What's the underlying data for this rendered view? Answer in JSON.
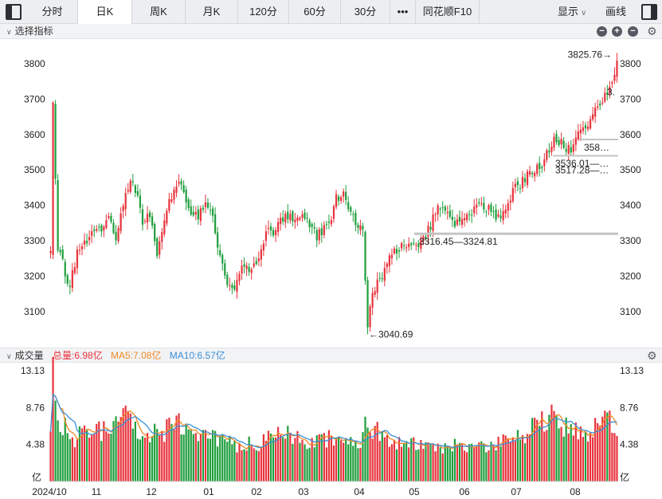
{
  "toolbar": {
    "tabs": [
      {
        "label": "分时"
      },
      {
        "label": "日K"
      },
      {
        "label": "周K"
      },
      {
        "label": "月K"
      },
      {
        "label": "120分"
      },
      {
        "label": "60分"
      },
      {
        "label": "30分"
      },
      {
        "label": "•••"
      },
      {
        "label": "同花顺F10"
      }
    ],
    "active_tab": "日K",
    "display_label": "显示",
    "draw_label": "画线"
  },
  "indicator_panel": {
    "label": "选择指标",
    "buttons": [
      "−",
      "+",
      "−"
    ]
  },
  "volume_panel": {
    "label": "成交量",
    "legend": {
      "total": "总量:6.98亿",
      "ma5": "MA5:7.08亿",
      "ma10": "MA10:6.57亿"
    }
  },
  "colors": {
    "up": "#e8333c",
    "down": "#1e9e3c",
    "ma5": "#f08a24",
    "ma10": "#3a8fd9",
    "ref_line": "#c4c4c4"
  },
  "chart_data": [
    {
      "type": "candlestick",
      "title": "",
      "x_labels": [
        "2024/10",
        "11",
        "12",
        "01",
        "02",
        "03",
        "04",
        "05",
        "06",
        "07",
        "08"
      ],
      "y_ticks": [
        3100,
        3200,
        3300,
        3400,
        3500,
        3600,
        3700,
        3800
      ],
      "ylim": [
        3000,
        3860
      ],
      "grid": false,
      "annotations": {
        "high": "3825.76→",
        "low": "←3040.69",
        "range_1": "3316.45—3324.81",
        "range_2": "358…",
        "range_3": "3536.01—…",
        "range_4": "3517.28—…",
        "range_5": "3."
      },
      "close_path": [
        [
          0,
          3260
        ],
        [
          1,
          3690
        ],
        [
          3,
          3280
        ],
        [
          8,
          3170
        ],
        [
          11,
          3270
        ],
        [
          15,
          3300
        ],
        [
          20,
          3330
        ],
        [
          24,
          3370
        ],
        [
          27,
          3300
        ],
        [
          30,
          3400
        ],
        [
          33,
          3480
        ],
        [
          35,
          3450
        ],
        [
          38,
          3350
        ],
        [
          41,
          3380
        ],
        [
          44,
          3270
        ],
        [
          47,
          3370
        ],
        [
          50,
          3420
        ],
        [
          53,
          3480
        ],
        [
          55,
          3430
        ],
        [
          58,
          3380
        ],
        [
          61,
          3370
        ],
        [
          64,
          3400
        ],
        [
          67,
          3360
        ],
        [
          70,
          3250
        ],
        [
          73,
          3190
        ],
        [
          76,
          3160
        ],
        [
          79,
          3230
        ],
        [
          83,
          3220
        ],
        [
          86,
          3260
        ],
        [
          89,
          3330
        ],
        [
          92,
          3320
        ],
        [
          95,
          3350
        ],
        [
          98,
          3370
        ],
        [
          101,
          3360
        ],
        [
          104,
          3370
        ],
        [
          107,
          3340
        ],
        [
          110,
          3310
        ],
        [
          113,
          3340
        ],
        [
          116,
          3370
        ],
        [
          118,
          3420
        ],
        [
          121,
          3440
        ],
        [
          124,
          3380
        ],
        [
          127,
          3340
        ],
        [
          129,
          3320
        ],
        [
          131,
          3060
        ],
        [
          133,
          3150
        ],
        [
          136,
          3190
        ],
        [
          140,
          3250
        ],
        [
          143,
          3270
        ],
        [
          146,
          3290
        ],
        [
          149,
          3300
        ],
        [
          152,
          3290
        ],
        [
          155,
          3320
        ],
        [
          158,
          3360
        ],
        [
          161,
          3400
        ],
        [
          164,
          3370
        ],
        [
          167,
          3350
        ],
        [
          170,
          3360
        ],
        [
          173,
          3380
        ],
        [
          176,
          3390
        ],
        [
          179,
          3400
        ],
        [
          182,
          3380
        ],
        [
          185,
          3360
        ],
        [
          188,
          3380
        ],
        [
          191,
          3440
        ],
        [
          194,
          3460
        ],
        [
          197,
          3490
        ],
        [
          200,
          3500
        ],
        [
          203,
          3520
        ],
        [
          206,
          3560
        ],
        [
          209,
          3590
        ],
        [
          212,
          3570
        ],
        [
          215,
          3550
        ],
        [
          218,
          3600
        ],
        [
          221,
          3620
        ],
        [
          224,
          3660
        ],
        [
          227,
          3690
        ],
        [
          230,
          3720
        ],
        [
          232,
          3760
        ],
        [
          234,
          3800
        ]
      ]
    },
    {
      "type": "bar",
      "title": "",
      "unit": "亿",
      "y_ticks": [
        4.38,
        8.76,
        13.13
      ],
      "ylim": [
        0,
        13.13
      ],
      "volume_path": [
        [
          0,
          6.6
        ],
        [
          1,
          12.8
        ],
        [
          2,
          9.4
        ],
        [
          4,
          7.3
        ],
        [
          7,
          5.8
        ],
        [
          10,
          5.2
        ],
        [
          14,
          5.9
        ],
        [
          18,
          6.4
        ],
        [
          22,
          6.2
        ],
        [
          26,
          6.7
        ],
        [
          28,
          8.4
        ],
        [
          30,
          9.1
        ],
        [
          32,
          8.2
        ],
        [
          36,
          6.4
        ],
        [
          40,
          5.8
        ],
        [
          44,
          6.0
        ],
        [
          48,
          6.2
        ],
        [
          50,
          6.9
        ],
        [
          53,
          7.1
        ],
        [
          56,
          6.3
        ],
        [
          60,
          5.6
        ],
        [
          64,
          5.4
        ],
        [
          68,
          5.0
        ],
        [
          72,
          4.7
        ],
        [
          76,
          4.6
        ],
        [
          80,
          4.4
        ],
        [
          84,
          4.5
        ],
        [
          88,
          4.8
        ],
        [
          92,
          5.3
        ],
        [
          96,
          5.6
        ],
        [
          100,
          5.5
        ],
        [
          104,
          5.1
        ],
        [
          108,
          4.8
        ],
        [
          112,
          5.0
        ],
        [
          116,
          5.2
        ],
        [
          120,
          5.0
        ],
        [
          124,
          4.8
        ],
        [
          128,
          4.5
        ],
        [
          131,
          7.8
        ],
        [
          134,
          6.2
        ],
        [
          138,
          5.6
        ],
        [
          142,
          5.0
        ],
        [
          146,
          4.6
        ],
        [
          150,
          4.4
        ],
        [
          154,
          4.3
        ],
        [
          158,
          4.4
        ],
        [
          162,
          4.3
        ],
        [
          166,
          4.3
        ],
        [
          170,
          4.3
        ],
        [
          174,
          4.2
        ],
        [
          178,
          4.4
        ],
        [
          182,
          4.5
        ],
        [
          186,
          4.6
        ],
        [
          190,
          5.0
        ],
        [
          194,
          5.6
        ],
        [
          198,
          6.2
        ],
        [
          202,
          6.8
        ],
        [
          206,
          7.8
        ],
        [
          209,
          7.2
        ],
        [
          212,
          6.8
        ],
        [
          216,
          6.1
        ],
        [
          220,
          5.9
        ],
        [
          224,
          6.3
        ],
        [
          228,
          7.0
        ],
        [
          232,
          7.4
        ],
        [
          234,
          7.0
        ]
      ]
    }
  ]
}
